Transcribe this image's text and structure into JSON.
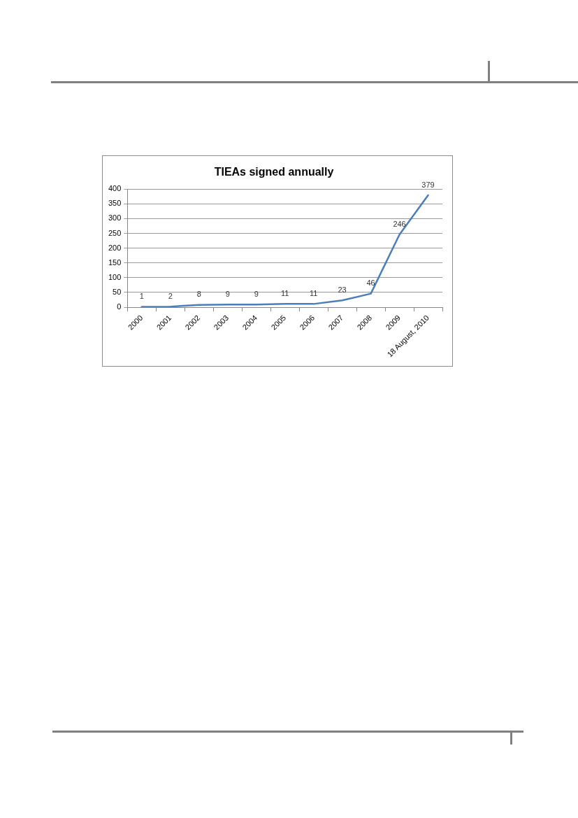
{
  "chart_data": {
    "type": "line",
    "title": "TIEAs signed annually",
    "categories": [
      "2000",
      "2001",
      "2002",
      "2003",
      "2004",
      "2005",
      "2006",
      "2007",
      "2008",
      "2009",
      "18 August, 2010"
    ],
    "series": [
      {
        "color": "#4a7ebb",
        "values": [
          1,
          2,
          8,
          9,
          9,
          11,
          11,
          23,
          46,
          246,
          379
        ]
      }
    ],
    "ylim": [
      0,
      400
    ],
    "yticks": [
      0,
      50,
      100,
      150,
      200,
      250,
      300,
      350,
      400
    ],
    "grid": "y",
    "legend": false,
    "marker": "none",
    "line_style": "solid",
    "data_labels": true
  }
}
